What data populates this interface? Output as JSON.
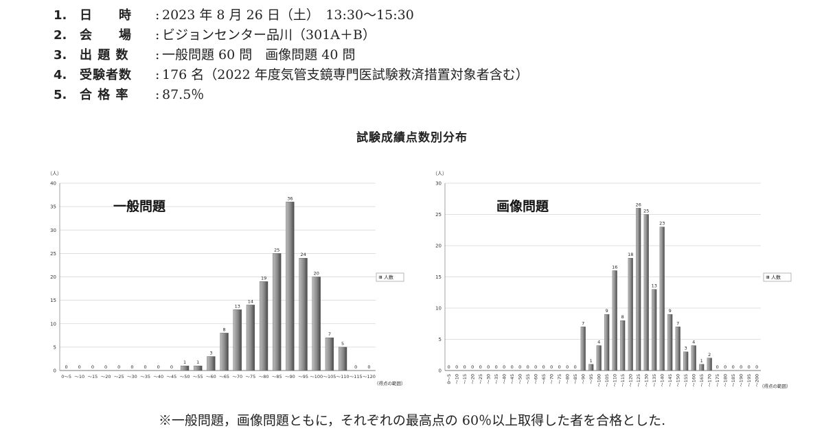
{
  "info": [
    {
      "num": "1.",
      "label": "日　　時",
      "value": "2023 年 8 月 26 日（土）　13:30〜15:30"
    },
    {
      "num": "2.",
      "label": "会　　場",
      "value": "ビジョンセンター品川（301A＋B）"
    },
    {
      "num": "3.",
      "label": "出 題 数",
      "value": "一般問題 60 問　画像問題 40 問"
    },
    {
      "num": "4.",
      "label": "受験者数",
      "value": "176 名（2022 年度気管支鏡専門医試験救済措置対象者含む）"
    },
    {
      "num": "5.",
      "label": "合 格 率",
      "value": "87.5％"
    }
  ],
  "section_title": "試験成績点数別分布",
  "note": "※一般問題，画像問題ともに，それぞれの最高点の 60％以上取得した者を合格とした.",
  "colors": {
    "bar_light": "#bdbdbd",
    "bar_dark": "#4a4a4a",
    "grid": "#d4d4d4"
  },
  "chart_data": [
    {
      "type": "bar",
      "title": "一般問題",
      "ylabel": "（人）",
      "xlabel": "（得点の範囲）",
      "ylim": [
        0,
        40
      ],
      "yticks": [
        0,
        5,
        10,
        15,
        20,
        25,
        30,
        35,
        40
      ],
      "legend": "人数",
      "legend_position": "right",
      "grid": true,
      "categories": [
        "0〜5",
        "〜10",
        "〜15",
        "〜20",
        "〜25",
        "〜30",
        "〜35",
        "〜40",
        "〜45",
        "〜50",
        "〜55",
        "〜60",
        "〜65",
        "〜70",
        "〜75",
        "〜80",
        "〜85",
        "〜90",
        "〜95",
        "〜100",
        "〜105",
        "〜110",
        "〜115",
        "〜120"
      ],
      "series": [
        {
          "name": "人数",
          "values": [
            0,
            0,
            0,
            0,
            0,
            0,
            0,
            0,
            0,
            1,
            1,
            3,
            8,
            13,
            14,
            19,
            25,
            36,
            24,
            20,
            7,
            5,
            0,
            0
          ]
        }
      ]
    },
    {
      "type": "bar",
      "title": "画像問題",
      "ylabel": "（人）",
      "xlabel": "（得点の範囲）",
      "ylim": [
        0,
        30
      ],
      "yticks": [
        0,
        5,
        10,
        15,
        20,
        25,
        30
      ],
      "legend": "人数",
      "legend_position": "right",
      "grid": true,
      "categories": [
        "0〜5",
        "〜10",
        "〜15",
        "〜20",
        "〜25",
        "〜30",
        "〜35",
        "〜40",
        "〜45",
        "〜50",
        "〜55",
        "〜60",
        "〜65",
        "〜70",
        "〜75",
        "〜80",
        "〜85",
        "〜90",
        "〜95",
        "〜100",
        "〜105",
        "〜110",
        "〜115",
        "〜120",
        "〜125",
        "〜130",
        "〜135",
        "〜140",
        "〜145",
        "〜150",
        "〜155",
        "〜160",
        "〜165",
        "〜170",
        "〜175",
        "〜180",
        "〜185",
        "〜190",
        "〜195",
        "〜200"
      ],
      "series": [
        {
          "name": "人数",
          "values": [
            0,
            0,
            0,
            0,
            0,
            0,
            0,
            0,
            0,
            0,
            0,
            0,
            0,
            0,
            0,
            0,
            0,
            7,
            1,
            4,
            9,
            16,
            8,
            18,
            26,
            25,
            13,
            23,
            9,
            7,
            3,
            4,
            1,
            2,
            0,
            0,
            0,
            0,
            0,
            0
          ]
        }
      ]
    }
  ]
}
